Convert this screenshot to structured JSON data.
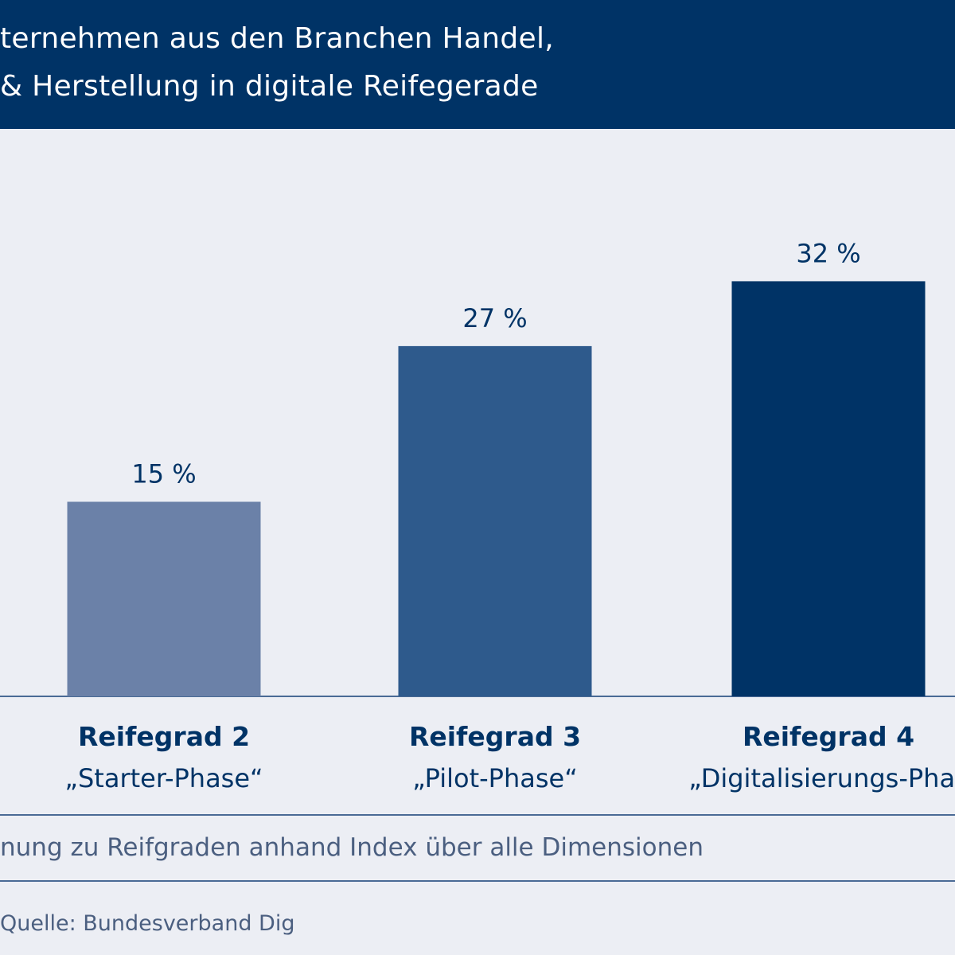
{
  "title": {
    "line1": "ternehmen aus den Branchen Handel,",
    "line2": "& Herstellung in digitale Reifegerade"
  },
  "colors": {
    "header_bg": "#003366",
    "background": "#eceef4",
    "text": "#003366",
    "bar_colors": [
      "#6b81a8",
      "#2e5a8c",
      "#003366"
    ]
  },
  "chart_data": {
    "type": "bar",
    "categories": [
      "Reifegrad 2",
      "Reifegrad 3",
      "Reifegrad 4"
    ],
    "category_sublabels": [
      "„Starter-Phase“",
      "„Pilot-Phase“",
      "„Digitalisierungs-Phas"
    ],
    "values": [
      15,
      27,
      32
    ],
    "value_labels": [
      "15 %",
      "27 %",
      "32 %"
    ],
    "unit": "%",
    "ylim": [
      0,
      38
    ],
    "grid": false,
    "legend": "none"
  },
  "footnote": "nung zu Reifgraden anhand Index über alle Dimensionen",
  "source": "Quelle: Bundesverband Dig"
}
